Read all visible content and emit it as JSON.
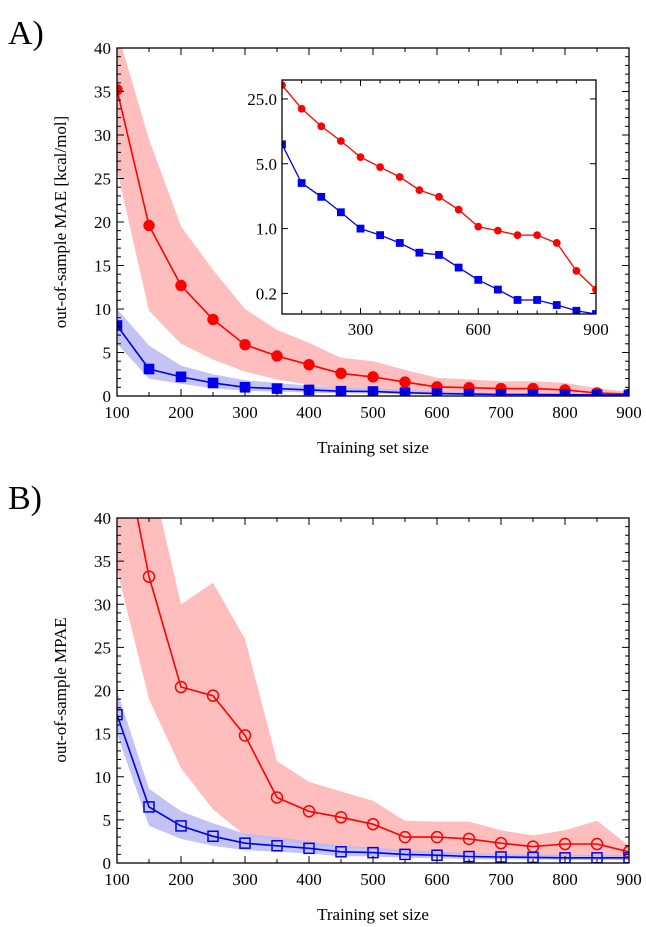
{
  "panels": [
    {
      "id": "A",
      "label": "A)"
    },
    {
      "id": "B",
      "label": "B)"
    }
  ],
  "colors": {
    "red": "#ff0000",
    "red_band": "#ffb3b3",
    "blue": "#0000ee",
    "blue_band": "#b8b8f5"
  },
  "chart_data": [
    {
      "panel": "A",
      "type": "line",
      "xlabel": "Training set size",
      "ylabel": "out-of-sample MAE [kcal/mol]",
      "xlim": [
        100,
        900
      ],
      "ylim": [
        0,
        40
      ],
      "xticks": [
        100,
        200,
        300,
        400,
        500,
        600,
        700,
        800,
        900
      ],
      "yticks": [
        0,
        5,
        10,
        15,
        20,
        25,
        30,
        35,
        40
      ],
      "x": [
        100,
        150,
        200,
        250,
        300,
        350,
        400,
        450,
        500,
        550,
        600,
        650,
        700,
        750,
        800,
        850,
        900
      ],
      "series": [
        {
          "color": "red",
          "marker": "filled-circle",
          "values": [
            35.2,
            19.6,
            12.7,
            8.8,
            5.9,
            4.6,
            3.6,
            2.6,
            2.2,
            1.6,
            1.05,
            0.95,
            0.85,
            0.85,
            0.7,
            0.35,
            0.22
          ],
          "band_low": [
            26.0,
            9.8,
            6.0,
            4.2,
            2.8,
            1.9,
            1.3,
            0.9,
            0.7,
            0.5,
            0.35,
            0.3,
            0.28,
            0.25,
            0.2,
            0.1,
            0.08
          ],
          "band_high": [
            42.0,
            29.5,
            19.5,
            14.5,
            10.0,
            7.6,
            6.1,
            4.4,
            4.0,
            3.0,
            2.1,
            1.9,
            1.7,
            1.7,
            1.5,
            0.9,
            0.5
          ]
        },
        {
          "color": "blue",
          "marker": "filled-square",
          "values": [
            8.1,
            3.1,
            2.2,
            1.5,
            1.0,
            0.85,
            0.7,
            0.55,
            0.52,
            0.38,
            0.28,
            0.22,
            0.17,
            0.17,
            0.15,
            0.13,
            0.12
          ],
          "band_low": [
            6.0,
            2.0,
            1.4,
            0.9,
            0.6,
            0.5,
            0.4,
            0.3,
            0.3,
            0.2,
            0.15,
            0.12,
            0.1,
            0.1,
            0.09,
            0.08,
            0.07
          ],
          "band_high": [
            10.0,
            5.8,
            3.5,
            2.5,
            1.8,
            1.5,
            1.2,
            0.95,
            0.9,
            0.7,
            0.55,
            0.45,
            0.35,
            0.35,
            0.3,
            0.28,
            0.25
          ]
        }
      ],
      "inset": {
        "type": "line",
        "yscale": "log",
        "xlim": [
          100,
          900
        ],
        "ylim": [
          0.12,
          40
        ],
        "xticks": [
          300,
          600,
          900
        ],
        "yticks": [
          0.2,
          1.0,
          5.0,
          25.0
        ],
        "ytick_labels": [
          "0.2",
          "1.0",
          "5.0",
          "25.0"
        ],
        "x": [
          100,
          150,
          200,
          250,
          300,
          350,
          400,
          450,
          500,
          550,
          600,
          650,
          700,
          750,
          800,
          850,
          900
        ],
        "series": [
          {
            "color": "red",
            "marker": "filled-circle",
            "values": [
              35.2,
              19.6,
              12.7,
              8.8,
              5.9,
              4.6,
              3.6,
              2.6,
              2.2,
              1.6,
              1.05,
              0.95,
              0.85,
              0.85,
              0.7,
              0.35,
              0.22
            ]
          },
          {
            "color": "blue",
            "marker": "filled-square",
            "values": [
              8.1,
              3.1,
              2.2,
              1.5,
              1.0,
              0.85,
              0.7,
              0.55,
              0.52,
              0.38,
              0.28,
              0.22,
              0.17,
              0.17,
              0.15,
              0.13,
              0.12
            ]
          }
        ]
      }
    },
    {
      "panel": "B",
      "type": "line",
      "xlabel": "Training set size",
      "ylabel": "out-of-sample MPAE",
      "xlim": [
        100,
        900
      ],
      "ylim": [
        0,
        40
      ],
      "xticks": [
        100,
        200,
        300,
        400,
        500,
        600,
        700,
        800,
        900
      ],
      "yticks": [
        0,
        5,
        10,
        15,
        20,
        25,
        30,
        35,
        40
      ],
      "x": [
        100,
        150,
        200,
        250,
        300,
        350,
        400,
        450,
        500,
        550,
        600,
        650,
        700,
        750,
        800,
        850,
        900
      ],
      "series": [
        {
          "color": "red",
          "marker": "open-circle",
          "values": [
            52.0,
            33.2,
            20.4,
            19.4,
            14.8,
            7.6,
            6.0,
            5.3,
            4.5,
            3.0,
            3.0,
            2.8,
            2.3,
            1.9,
            2.2,
            2.2,
            1.3
          ],
          "band_low": [
            34.0,
            19.0,
            11.0,
            6.2,
            3.2,
            2.6,
            2.0,
            1.9,
            1.6,
            1.2,
            1.1,
            1.0,
            0.9,
            0.8,
            0.8,
            0.8,
            0.5
          ],
          "band_high": [
            60.0,
            46.0,
            30.0,
            32.5,
            26.0,
            11.8,
            9.4,
            8.3,
            7.2,
            4.9,
            4.8,
            4.8,
            3.8,
            3.2,
            3.8,
            4.9,
            2.0
          ]
        },
        {
          "color": "blue",
          "marker": "open-square",
          "values": [
            17.2,
            6.5,
            4.3,
            3.1,
            2.3,
            2.0,
            1.7,
            1.3,
            1.2,
            1.0,
            0.9,
            0.75,
            0.7,
            0.65,
            0.6,
            0.6,
            0.6
          ],
          "band_low": [
            15.0,
            4.3,
            2.8,
            2.0,
            1.5,
            1.3,
            1.1,
            0.8,
            0.75,
            0.6,
            0.55,
            0.45,
            0.4,
            0.4,
            0.35,
            0.35,
            0.35
          ],
          "band_high": [
            20.0,
            8.6,
            6.0,
            4.6,
            3.4,
            3.0,
            2.5,
            2.0,
            1.8,
            1.5,
            1.35,
            1.15,
            1.05,
            1.0,
            0.95,
            0.95,
            0.95
          ]
        }
      ]
    }
  ]
}
